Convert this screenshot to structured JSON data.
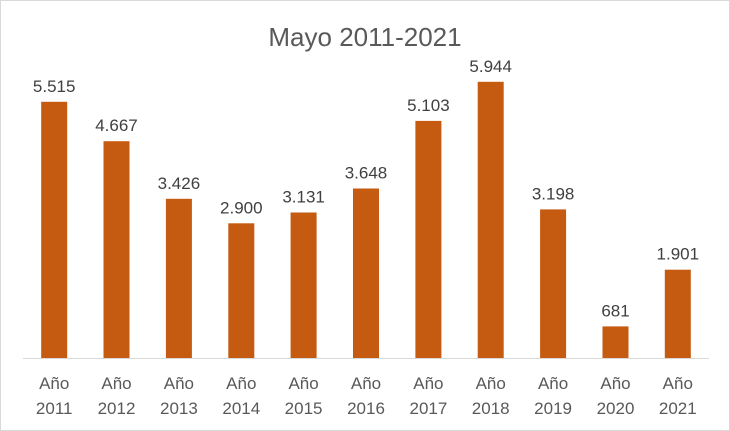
{
  "chart_data": {
    "type": "bar",
    "title": "Mayo 2011-2021",
    "xlabel": "",
    "ylabel": "",
    "categories": [
      [
        "Año",
        "2011"
      ],
      [
        "Año",
        "2012"
      ],
      [
        "Año",
        "2013"
      ],
      [
        "Año",
        "2014"
      ],
      [
        "Año",
        "2015"
      ],
      [
        "Año",
        "2016"
      ],
      [
        "Año",
        "2017"
      ],
      [
        "Año",
        "2018"
      ],
      [
        "Año",
        "2019"
      ],
      [
        "Año",
        "2020"
      ],
      [
        "Año",
        "2021"
      ]
    ],
    "values": [
      5515,
      4667,
      3426,
      2900,
      3131,
      3648,
      5103,
      5944,
      3198,
      681,
      1901
    ],
    "data_labels": [
      "5.515",
      "4.667",
      "3.426",
      "2.900",
      "3.131",
      "3.648",
      "5.103",
      "5.944",
      "3.198",
      "681",
      "1.901"
    ],
    "ylim": [
      0,
      6500
    ],
    "bar_color": "#c55a11",
    "grid": false,
    "legend": "none"
  }
}
